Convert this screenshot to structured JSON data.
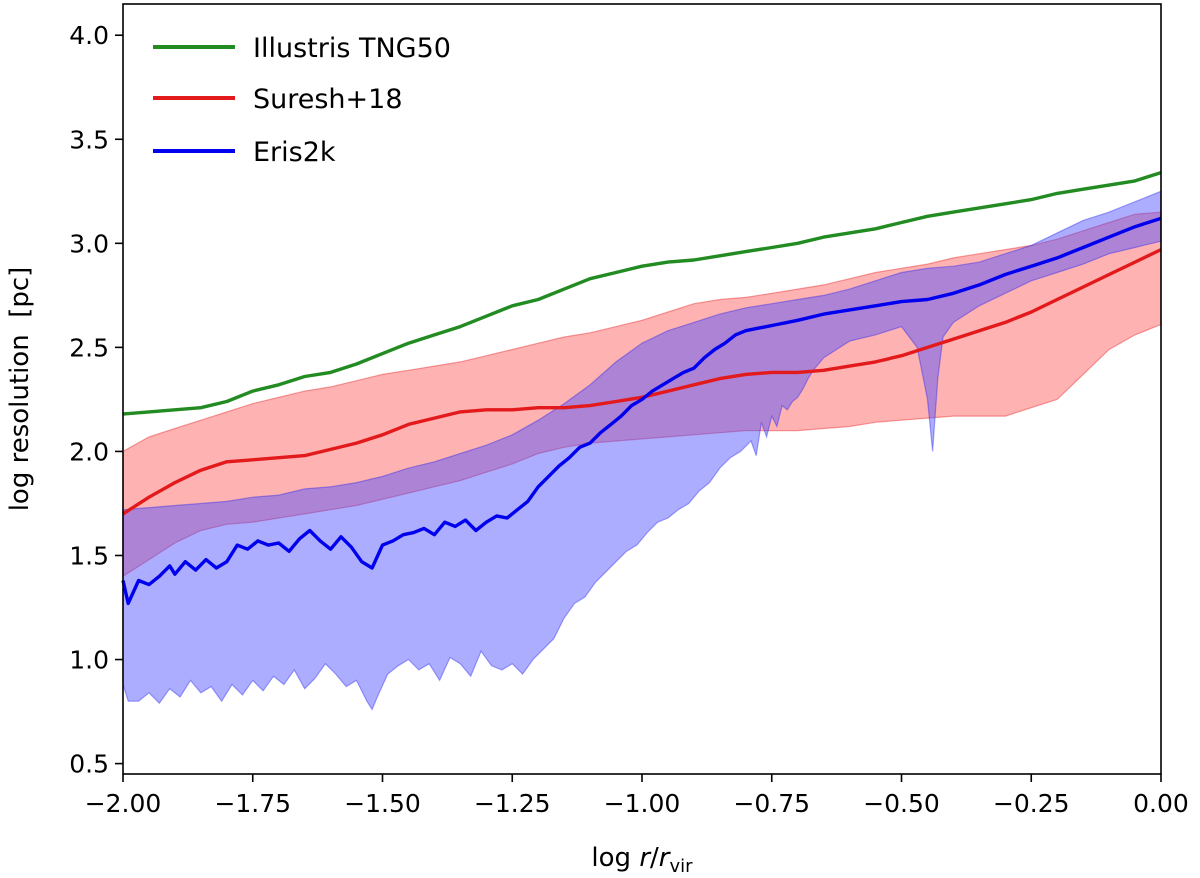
{
  "chart_data": {
    "type": "line",
    "xlabel": {
      "prefix": "log ",
      "var": "r",
      "slash": "/",
      "var2": "r",
      "sub": "vir"
    },
    "ylabel": "log resolution  [pc]",
    "xlim": [
      -2.0,
      0.0
    ],
    "ylim": [
      0.45,
      4.15
    ],
    "xticks": [
      -2.0,
      -1.75,
      -1.5,
      -1.25,
      -1.0,
      -0.75,
      -0.5,
      -0.25,
      0.0
    ],
    "xtick_labels": [
      "−2.00",
      "−1.75",
      "−1.50",
      "−1.25",
      "−1.00",
      "−0.75",
      "−0.50",
      "−0.25",
      "0.00"
    ],
    "yticks": [
      0.5,
      1.0,
      1.5,
      2.0,
      2.5,
      3.0,
      3.5,
      4.0
    ],
    "ytick_labels": [
      "0.5",
      "1.0",
      "1.5",
      "2.0",
      "2.5",
      "3.0",
      "3.5",
      "4.0"
    ],
    "legend_position": "top-left",
    "grid": false,
    "series": [
      {
        "name": "Illustris TNG50",
        "color": "#228b22",
        "x": [
          -2.0,
          -1.95,
          -1.9,
          -1.85,
          -1.8,
          -1.75,
          -1.7,
          -1.65,
          -1.6,
          -1.55,
          -1.5,
          -1.45,
          -1.4,
          -1.35,
          -1.3,
          -1.25,
          -1.2,
          -1.15,
          -1.1,
          -1.05,
          -1.0,
          -0.95,
          -0.9,
          -0.85,
          -0.8,
          -0.75,
          -0.7,
          -0.65,
          -0.6,
          -0.55,
          -0.5,
          -0.45,
          -0.4,
          -0.35,
          -0.3,
          -0.25,
          -0.2,
          -0.15,
          -0.1,
          -0.05,
          0.0
        ],
        "y": [
          2.18,
          2.19,
          2.2,
          2.21,
          2.24,
          2.29,
          2.32,
          2.36,
          2.38,
          2.42,
          2.47,
          2.52,
          2.56,
          2.6,
          2.65,
          2.7,
          2.73,
          2.78,
          2.83,
          2.86,
          2.89,
          2.91,
          2.92,
          2.94,
          2.96,
          2.98,
          3.0,
          3.03,
          3.05,
          3.07,
          3.1,
          3.13,
          3.15,
          3.17,
          3.19,
          3.21,
          3.24,
          3.26,
          3.28,
          3.3,
          3.34
        ]
      },
      {
        "name": "Suresh+18",
        "color": "#e31a1c",
        "x": [
          -2.0,
          -1.95,
          -1.9,
          -1.85,
          -1.8,
          -1.75,
          -1.7,
          -1.65,
          -1.6,
          -1.55,
          -1.5,
          -1.45,
          -1.4,
          -1.35,
          -1.3,
          -1.25,
          -1.2,
          -1.15,
          -1.1,
          -1.05,
          -1.0,
          -0.95,
          -0.9,
          -0.85,
          -0.8,
          -0.75,
          -0.7,
          -0.65,
          -0.6,
          -0.55,
          -0.5,
          -0.45,
          -0.4,
          -0.35,
          -0.3,
          -0.25,
          -0.2,
          -0.15,
          -0.1,
          -0.05,
          0.0
        ],
        "y": [
          1.7,
          1.78,
          1.85,
          1.91,
          1.95,
          1.96,
          1.97,
          1.98,
          2.01,
          2.04,
          2.08,
          2.13,
          2.16,
          2.19,
          2.2,
          2.2,
          2.21,
          2.21,
          2.22,
          2.24,
          2.26,
          2.29,
          2.32,
          2.35,
          2.37,
          2.38,
          2.38,
          2.39,
          2.41,
          2.43,
          2.46,
          2.5,
          2.54,
          2.58,
          2.62,
          2.67,
          2.73,
          2.79,
          2.85,
          2.91,
          2.97
        ],
        "band_upper": [
          2.0,
          2.07,
          2.11,
          2.15,
          2.19,
          2.23,
          2.26,
          2.29,
          2.31,
          2.34,
          2.37,
          2.39,
          2.41,
          2.43,
          2.46,
          2.49,
          2.52,
          2.55,
          2.57,
          2.6,
          2.63,
          2.67,
          2.71,
          2.73,
          2.74,
          2.76,
          2.78,
          2.8,
          2.83,
          2.86,
          2.88,
          2.9,
          2.93,
          2.95,
          2.97,
          2.99,
          3.02,
          3.06,
          3.1,
          3.14,
          3.15
        ],
        "band_lower": [
          1.4,
          1.48,
          1.56,
          1.62,
          1.65,
          1.66,
          1.68,
          1.7,
          1.72,
          1.74,
          1.77,
          1.8,
          1.83,
          1.86,
          1.9,
          1.94,
          1.99,
          2.02,
          2.04,
          2.05,
          2.06,
          2.07,
          2.08,
          2.09,
          2.1,
          2.1,
          2.1,
          2.11,
          2.12,
          2.14,
          2.15,
          2.16,
          2.17,
          2.17,
          2.17,
          2.21,
          2.25,
          2.37,
          2.49,
          2.56,
          2.61
        ]
      },
      {
        "name": "Eris2k",
        "color": "#0000ee",
        "x": [
          -2.0,
          -1.99,
          -1.97,
          -1.95,
          -1.93,
          -1.91,
          -1.9,
          -1.88,
          -1.86,
          -1.84,
          -1.82,
          -1.8,
          -1.78,
          -1.76,
          -1.74,
          -1.72,
          -1.7,
          -1.68,
          -1.66,
          -1.64,
          -1.62,
          -1.6,
          -1.58,
          -1.56,
          -1.54,
          -1.52,
          -1.5,
          -1.48,
          -1.46,
          -1.44,
          -1.42,
          -1.4,
          -1.38,
          -1.36,
          -1.34,
          -1.32,
          -1.3,
          -1.28,
          -1.26,
          -1.24,
          -1.22,
          -1.2,
          -1.18,
          -1.16,
          -1.14,
          -1.12,
          -1.1,
          -1.08,
          -1.06,
          -1.04,
          -1.02,
          -1.0,
          -0.98,
          -0.96,
          -0.94,
          -0.92,
          -0.9,
          -0.88,
          -0.86,
          -0.84,
          -0.82,
          -0.8,
          -0.78,
          -0.76,
          -0.74,
          -0.72,
          -0.7,
          -0.65,
          -0.6,
          -0.55,
          -0.5,
          -0.45,
          -0.4,
          -0.35,
          -0.3,
          -0.25,
          -0.2,
          -0.15,
          -0.1,
          -0.05,
          0.0
        ],
        "y": [
          1.38,
          1.27,
          1.38,
          1.36,
          1.4,
          1.45,
          1.41,
          1.47,
          1.43,
          1.48,
          1.44,
          1.47,
          1.55,
          1.53,
          1.57,
          1.55,
          1.56,
          1.52,
          1.58,
          1.62,
          1.57,
          1.53,
          1.59,
          1.54,
          1.47,
          1.44,
          1.55,
          1.57,
          1.6,
          1.61,
          1.63,
          1.6,
          1.66,
          1.64,
          1.67,
          1.62,
          1.66,
          1.69,
          1.68,
          1.72,
          1.76,
          1.83,
          1.88,
          1.93,
          1.97,
          2.02,
          2.04,
          2.09,
          2.13,
          2.17,
          2.22,
          2.25,
          2.29,
          2.32,
          2.35,
          2.38,
          2.4,
          2.45,
          2.49,
          2.52,
          2.56,
          2.58,
          2.59,
          2.6,
          2.61,
          2.62,
          2.63,
          2.66,
          2.68,
          2.7,
          2.72,
          2.73,
          2.76,
          2.8,
          2.85,
          2.89,
          2.93,
          2.98,
          3.03,
          3.08,
          3.12
        ],
        "band_upper_x": [
          -2.0,
          -1.95,
          -1.9,
          -1.85,
          -1.8,
          -1.75,
          -1.7,
          -1.65,
          -1.6,
          -1.55,
          -1.5,
          -1.45,
          -1.4,
          -1.35,
          -1.3,
          -1.25,
          -1.2,
          -1.15,
          -1.1,
          -1.05,
          -1.0,
          -0.95,
          -0.9,
          -0.85,
          -0.8,
          -0.75,
          -0.7,
          -0.65,
          -0.6,
          -0.55,
          -0.5,
          -0.45,
          -0.4,
          -0.35,
          -0.3,
          -0.25,
          -0.2,
          -0.15,
          -0.1,
          -0.05,
          0.0
        ],
        "band_upper": [
          1.72,
          1.73,
          1.74,
          1.75,
          1.76,
          1.78,
          1.79,
          1.82,
          1.83,
          1.85,
          1.88,
          1.92,
          1.95,
          1.99,
          2.03,
          2.08,
          2.15,
          2.23,
          2.32,
          2.43,
          2.52,
          2.58,
          2.62,
          2.66,
          2.69,
          2.71,
          2.73,
          2.75,
          2.78,
          2.82,
          2.86,
          2.88,
          2.89,
          2.91,
          2.95,
          2.99,
          3.05,
          3.11,
          3.15,
          3.2,
          3.25
        ],
        "band_lower_x": [
          -2.0,
          -1.99,
          -1.97,
          -1.95,
          -1.93,
          -1.91,
          -1.89,
          -1.87,
          -1.85,
          -1.83,
          -1.81,
          -1.79,
          -1.77,
          -1.75,
          -1.73,
          -1.71,
          -1.69,
          -1.67,
          -1.65,
          -1.63,
          -1.61,
          -1.59,
          -1.57,
          -1.55,
          -1.53,
          -1.52,
          -1.51,
          -1.49,
          -1.47,
          -1.45,
          -1.43,
          -1.41,
          -1.39,
          -1.37,
          -1.35,
          -1.33,
          -1.31,
          -1.29,
          -1.27,
          -1.25,
          -1.23,
          -1.21,
          -1.19,
          -1.17,
          -1.15,
          -1.13,
          -1.11,
          -1.09,
          -1.07,
          -1.05,
          -1.03,
          -1.01,
          -0.99,
          -0.97,
          -0.95,
          -0.93,
          -0.91,
          -0.89,
          -0.87,
          -0.85,
          -0.83,
          -0.81,
          -0.79,
          -0.78,
          -0.77,
          -0.76,
          -0.75,
          -0.74,
          -0.73,
          -0.72,
          -0.71,
          -0.7,
          -0.69,
          -0.68,
          -0.67,
          -0.65,
          -0.6,
          -0.55,
          -0.5,
          -0.47,
          -0.45,
          -0.44,
          -0.43,
          -0.42,
          -0.4,
          -0.35,
          -0.3,
          -0.25,
          -0.2,
          -0.15,
          -0.1,
          -0.05,
          0.0
        ],
        "band_lower": [
          0.88,
          0.8,
          0.8,
          0.84,
          0.79,
          0.86,
          0.82,
          0.9,
          0.84,
          0.87,
          0.8,
          0.88,
          0.83,
          0.9,
          0.85,
          0.92,
          0.88,
          0.95,
          0.86,
          0.91,
          0.98,
          0.93,
          0.87,
          0.9,
          0.8,
          0.76,
          0.82,
          0.93,
          0.97,
          1.0,
          0.95,
          0.98,
          0.9,
          1.01,
          0.98,
          0.92,
          1.04,
          0.97,
          0.95,
          0.98,
          0.93,
          1.0,
          1.05,
          1.1,
          1.2,
          1.27,
          1.3,
          1.37,
          1.42,
          1.47,
          1.52,
          1.55,
          1.61,
          1.66,
          1.68,
          1.72,
          1.75,
          1.81,
          1.85,
          1.92,
          1.97,
          2.0,
          2.05,
          1.98,
          2.14,
          2.07,
          2.17,
          2.12,
          2.22,
          2.2,
          2.24,
          2.26,
          2.3,
          2.35,
          2.39,
          2.45,
          2.53,
          2.56,
          2.6,
          2.5,
          2.25,
          2.0,
          2.35,
          2.55,
          2.62,
          2.7,
          2.76,
          2.82,
          2.86,
          2.9,
          2.95,
          2.98,
          3.01
        ]
      }
    ]
  }
}
